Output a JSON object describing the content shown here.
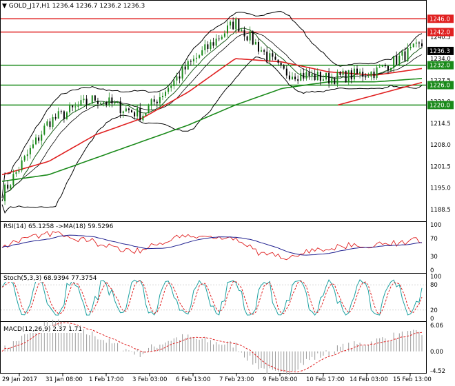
{
  "header": {
    "symbol": "GOLD_J17,H1",
    "ohlc": "1236.4 1236.7 1236.2 1236.3"
  },
  "price_pane": {
    "ylim": [
      1186,
      1250
    ],
    "y_ticks": [
      "1246.0",
      "1240.5",
      "1234.0",
      "1227.5",
      "1221.0",
      "1214.5",
      "1208.0",
      "1201.5",
      "1195.0",
      "1188.5"
    ],
    "current_price": "1236.3",
    "horizontal_levels": [
      {
        "value": 1246.0,
        "label": "1246.0",
        "color": "#e02020"
      },
      {
        "value": 1242.0,
        "label": "1242.0",
        "color": "#e02020"
      },
      {
        "value": 1232.0,
        "label": "1232.0",
        "color": "#1a8a1a"
      },
      {
        "value": 1226.0,
        "label": "1226.0",
        "color": "#1a8a1a"
      },
      {
        "value": 1220.0,
        "label": "1220.0",
        "color": "#1a8a1a"
      }
    ]
  },
  "rsi_pane": {
    "label": "RSI(14) 65.1258  ->MA(18) 59.5296",
    "ticks": [
      "100",
      "70",
      "30",
      "0"
    ],
    "ylim": [
      0,
      100
    ]
  },
  "stoch_pane": {
    "label": "Stoch(5,3,3) 68.9394 77.3754",
    "ticks": [
      "100",
      "80",
      "20",
      "0"
    ],
    "ylim": [
      0,
      100
    ]
  },
  "macd_pane": {
    "label": "MACD(12,26,9) 2.37 1.71",
    "ticks": [
      "6.06",
      "0.00",
      "-4.52"
    ],
    "ylim": [
      -4.52,
      6.06
    ]
  },
  "x_labels": [
    "29 Jan 2017",
    "31 Jan 08:00",
    "1 Feb 17:00",
    "3 Feb 03:00",
    "6 Feb 13:00",
    "7 Feb 23:00",
    "9 Feb 08:00",
    "10 Feb 17:00",
    "14 Feb 03:00",
    "15 Feb 13:00"
  ],
  "colors": {
    "bull": "#1a8a1a",
    "bear": "#000000",
    "red": "#e02020",
    "green": "#1a8a1a",
    "rsi": "#e02020",
    "rsi_ma": "#1f1f8f",
    "stoch_main": "#1aa0a0",
    "stoch_signal": "#e02020",
    "macd_hist": "#9a9a9a",
    "macd_signal": "#e02020"
  },
  "chart_data": {
    "type": "line",
    "title": "GOLD_J17,H1",
    "x": [
      "29 Jan 2017",
      "31 Jan 08:00",
      "1 Feb 17:00",
      "3 Feb 03:00",
      "6 Feb 13:00",
      "7 Feb 23:00",
      "9 Feb 08:00",
      "10 Feb 17:00",
      "14 Feb 03:00",
      "15 Feb 13:00"
    ],
    "series": [
      {
        "values": [
          1193.0,
          1215.0,
          1222.0,
          1217.0,
          1232.0,
          1245.0,
          1230.0,
          1228.0,
          1230.0,
          1238.0
        ]
      },
      {
        "values": [
          1199.0,
          1203.0,
          1211.0,
          1216.0,
          1224.0,
          1234.0,
          1233.0,
          1230.0,
          1229.0,
          1231.0
        ]
      },
      {
        "values": [
          1197.0,
          1199.0,
          1204.0,
          1209.0,
          1214.0,
          1220.0,
          1225.0,
          1227.0,
          1227.0,
          1228.0
        ]
      }
    ],
    "ylim": [
      1186,
      1250
    ]
  }
}
